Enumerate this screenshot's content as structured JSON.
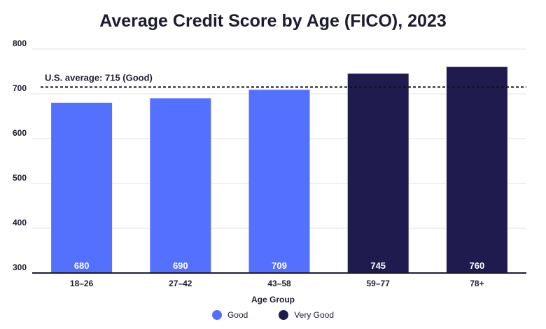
{
  "chart_data": {
    "type": "bar",
    "title": "Average Credit Score by Age (FICO), 2023",
    "xlabel": "Age Group",
    "ylabel": "",
    "categories": [
      "18–26",
      "27–42",
      "43–58",
      "59–77",
      "78+"
    ],
    "values": [
      680,
      690,
      709,
      745,
      760
    ],
    "data_labels": [
      "680",
      "690",
      "709",
      "745",
      "760"
    ],
    "rating": [
      "Good",
      "Good",
      "Good",
      "Very Good",
      "Very Good"
    ],
    "ylim": [
      300,
      800
    ],
    "yticks": [
      300,
      400,
      500,
      600,
      700,
      800
    ],
    "ytick_labels": [
      "300",
      "400",
      "500",
      "600",
      "700",
      "800"
    ],
    "grid": true,
    "legend_placement": "bottom",
    "legend": [
      {
        "name": "Good",
        "color": "#5470ff"
      },
      {
        "name": "Very Good",
        "color": "#1f1b4f"
      }
    ],
    "reference_line": {
      "value": 715,
      "label": "U.S. average: 715 (Good)"
    }
  }
}
